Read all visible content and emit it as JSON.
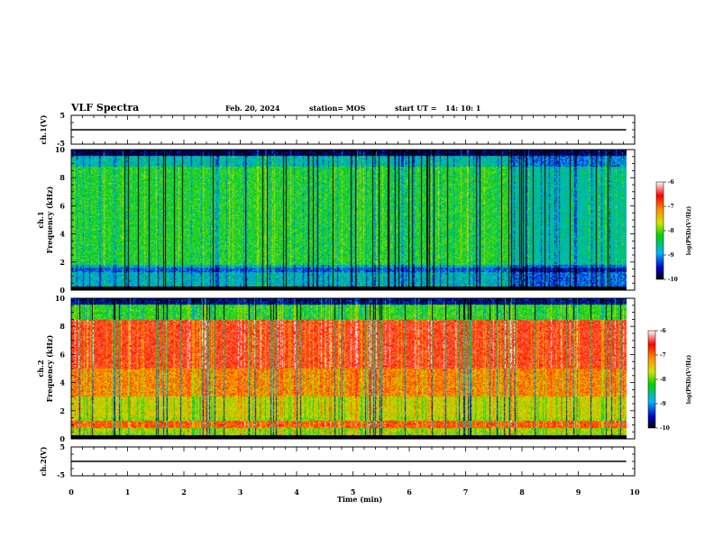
{
  "header": {
    "title": "VLF Spectra",
    "date": "Feb. 20, 2024",
    "station": "station= MOS",
    "start": "start UT =",
    "start_time": "14: 10: 1"
  },
  "chart_data": [
    {
      "type": "line",
      "name": "ch1-voltage",
      "ylabel": "ch.1(V)",
      "ylim": [
        -5,
        5
      ],
      "yticks": [
        "5",
        "-5"
      ],
      "x": [
        0,
        9.85
      ],
      "y": [
        0,
        0
      ]
    },
    {
      "type": "heatmap",
      "name": "ch1-spectrogram",
      "ylabel_line1": "ch.1",
      "ylabel_line2": "Frequency (kHz)",
      "ylim": [
        0,
        10
      ],
      "yticks": [
        "0",
        "2",
        "4",
        "6",
        "8",
        "10"
      ],
      "data_xlim": [
        0,
        9.85
      ],
      "colorbar": {
        "label": "log(PSD)(V²/Hz)",
        "range": [
          -10,
          -6
        ],
        "ticks": [
          "-6",
          "-7",
          "-8",
          "-9",
          "-10"
        ]
      }
    },
    {
      "type": "heatmap",
      "name": "ch2-spectrogram",
      "ylabel_line1": "ch.2",
      "ylabel_line2": "Frequency (kHz)",
      "ylim": [
        0,
        10
      ],
      "yticks": [
        "0",
        "2",
        "4",
        "6",
        "8",
        "10"
      ],
      "data_xlim": [
        0,
        9.85
      ],
      "colorbar": {
        "label": "log(PSD)(V²/Hz)",
        "range": [
          -10,
          -6
        ],
        "ticks": [
          "-6",
          "-7",
          "-8",
          "-9",
          "-10"
        ]
      }
    },
    {
      "type": "line",
      "name": "ch2-voltage",
      "ylabel": "ch.2(V)",
      "ylim": [
        -5,
        5
      ],
      "yticks": [
        "5",
        "-5"
      ],
      "x": [
        0,
        9.85
      ],
      "y": [
        0,
        0
      ]
    }
  ],
  "xaxis": {
    "label": "Time (min)",
    "xlim": [
      0,
      10
    ],
    "ticks": [
      "0",
      "1",
      "2",
      "3",
      "4",
      "5",
      "6",
      "7",
      "8",
      "9",
      "10"
    ]
  }
}
